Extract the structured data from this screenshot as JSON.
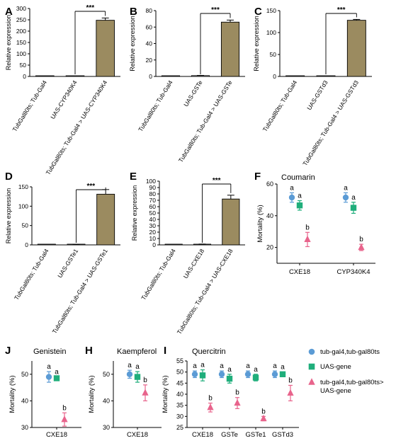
{
  "chart_data": [
    {
      "panel": "A",
      "type": "bar",
      "ylabel": "Relative expression",
      "categories": [
        "TubGal80ts; Tub-Gal4",
        "UAS-CYP340K4",
        "TubGal80ts; Tub-Gal4 > UAS-CYP340K4"
      ],
      "values": [
        0.5,
        0.5,
        248
      ],
      "errors": [
        0,
        0,
        10
      ],
      "ylim": [
        0,
        300
      ],
      "yticks": [
        0,
        50,
        100,
        150,
        200,
        250,
        300
      ],
      "significance": "***",
      "bar_color": "#9B8B60"
    },
    {
      "panel": "B",
      "type": "bar",
      "ylabel": "Relative expression",
      "categories": [
        "TubGal80ts; Tub-Gal4",
        "UAS-GSTe",
        "TubGal80ts; Tub-Gal4 > UAS-GSTe"
      ],
      "values": [
        0.3,
        1.0,
        66
      ],
      "errors": [
        0,
        0.3,
        2.5
      ],
      "ylim": [
        0,
        80
      ],
      "yticks": [
        0,
        20,
        40,
        60,
        80
      ],
      "significance": "***",
      "bar_color": "#9B8B60"
    },
    {
      "panel": "C",
      "type": "bar",
      "ylabel": "Relative expression",
      "categories": [
        "TubGal80ts; Tub-Gal4",
        "UAS-GSTd3",
        "TubGal80ts; Tub-Gal4 > UAS-GSTd3"
      ],
      "values": [
        0.5,
        0.5,
        128
      ],
      "errors": [
        0,
        0,
        2
      ],
      "ylim": [
        0,
        150
      ],
      "yticks": [
        0,
        50,
        100,
        150
      ],
      "significance": "***",
      "bar_color": "#9B8B60"
    },
    {
      "panel": "D",
      "type": "bar",
      "ylabel": "Relative expression",
      "categories": [
        "TubGal80ts; Tub-Gal4",
        "UAS-GSTe1",
        "TubGal80ts; Tub-Gal4 > UAS-GSTe1"
      ],
      "values": [
        0.3,
        0.8,
        131
      ],
      "errors": [
        0,
        0.3,
        12
      ],
      "ylim": [
        0,
        150
      ],
      "yticks": [
        0,
        50,
        100,
        150
      ],
      "significance": "***",
      "bar_color": "#9B8B60"
    },
    {
      "panel": "E",
      "type": "bar",
      "ylabel": "Relative expression",
      "categories": [
        "TubGal80ts; Tub-Gal4",
        "UAS-CXE18",
        "TubGal80ts; Tub-Gal4 > UAS-CXE18"
      ],
      "values": [
        0.3,
        1.0,
        72
      ],
      "errors": [
        0,
        0.3,
        6
      ],
      "ylim": [
        0,
        100
      ],
      "yticks": [
        0,
        10,
        20,
        30,
        40,
        50,
        60,
        70,
        80,
        90,
        100
      ],
      "significance": "***",
      "bar_color": "#9B8B60"
    },
    {
      "panel": "F",
      "type": "scatter",
      "title": "Coumarin",
      "ylabel": "Mortality (%)",
      "categories": [
        "CXE18",
        "CYP340K4"
      ],
      "ylim": [
        10,
        60
      ],
      "yticks": [
        20,
        40,
        60
      ],
      "series": [
        {
          "values": [
            51.5,
            51.5
          ],
          "errors": [
            3,
            3
          ],
          "letters": [
            "a",
            "a"
          ],
          "marker": "circle",
          "color": "#5B9BD5"
        },
        {
          "values": [
            46.5,
            45
          ],
          "errors": [
            3,
            3.5
          ],
          "letters": [
            "a",
            "a"
          ],
          "marker": "square",
          "color": "#1FAE7B"
        },
        {
          "values": [
            25,
            20
          ],
          "errors": [
            4.5,
            2
          ],
          "letters": [
            "b",
            "b"
          ],
          "marker": "triangle",
          "color": "#E8648C"
        }
      ]
    },
    {
      "panel": "J",
      "type": "scatter",
      "title": "Genistein",
      "ylabel": "Mortality (%)",
      "categories": [
        "CXE18"
      ],
      "ylim": [
        30,
        55
      ],
      "yticks": [
        30,
        40,
        50
      ],
      "series": [
        {
          "values": [
            49
          ],
          "errors": [
            2
          ],
          "letters": [
            "a"
          ],
          "marker": "circle",
          "color": "#5B9BD5"
        },
        {
          "values": [
            48.5
          ],
          "errors": [
            0.5
          ],
          "letters": [
            "a"
          ],
          "marker": "square",
          "color": "#1FAE7B"
        },
        {
          "values": [
            33
          ],
          "errors": [
            2.5
          ],
          "letters": [
            "b"
          ],
          "marker": "triangle",
          "color": "#E8648C"
        }
      ]
    },
    {
      "panel": "H",
      "type": "scatter",
      "title": "Kaempferol",
      "ylabel": "Mortality (%)",
      "categories": [
        "CXE18"
      ],
      "ylim": [
        30,
        55
      ],
      "yticks": [
        30,
        40,
        50
      ],
      "series": [
        {
          "values": [
            50
          ],
          "errors": [
            1.5
          ],
          "letters": [
            "a"
          ],
          "marker": "circle",
          "color": "#5B9BD5"
        },
        {
          "values": [
            49
          ],
          "errors": [
            2
          ],
          "letters": [
            "a"
          ],
          "marker": "square",
          "color": "#1FAE7B"
        },
        {
          "values": [
            43
          ],
          "errors": [
            3
          ],
          "letters": [
            "b"
          ],
          "marker": "triangle",
          "color": "#E8648C"
        }
      ]
    },
    {
      "panel": "I",
      "type": "scatter",
      "title": "Quercitrin",
      "ylabel": "Mortality (%)",
      "categories": [
        "CXE18",
        "GSTe",
        "GSTe1",
        "GSTd3"
      ],
      "ylim": [
        25,
        55
      ],
      "yticks": [
        25,
        30,
        35,
        40,
        45,
        50,
        55
      ],
      "series": [
        {
          "values": [
            49,
            49,
            49,
            49
          ],
          "errors": [
            1.5,
            1.5,
            1.5,
            1.5
          ],
          "letters": [
            "a",
            "a",
            "a",
            "a"
          ],
          "marker": "circle",
          "color": "#5B9BD5"
        },
        {
          "values": [
            48.5,
            47,
            47.5,
            49
          ],
          "errors": [
            2.5,
            2,
            1.5,
            1
          ],
          "letters": [
            "a",
            "a",
            "a",
            "a"
          ],
          "marker": "square",
          "color": "#1FAE7B"
        },
        {
          "values": [
            34,
            36,
            29,
            40.5
          ],
          "errors": [
            2,
            2.5,
            1,
            3.5
          ],
          "letters": [
            "b",
            "b",
            "b",
            "b"
          ],
          "marker": "triangle",
          "color": "#E8648C"
        }
      ]
    }
  ],
  "legend": {
    "placement": "right",
    "items": [
      {
        "label": "tub-gal4,tub-gal80ts",
        "marker": "circle",
        "color": "#5B9BD5"
      },
      {
        "label": "UAS-gene",
        "marker": "square",
        "color": "#1FAE7B"
      },
      {
        "label_lines": [
          "tub-gal4,tub-gal80ts>",
          "UAS-gene"
        ],
        "marker": "triangle",
        "color": "#E8648C"
      }
    ]
  }
}
